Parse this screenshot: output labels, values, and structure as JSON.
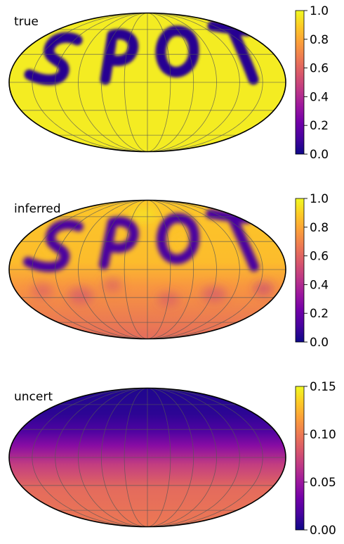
{
  "chart_data": [
    {
      "type": "heatmap",
      "projection": "mollweide",
      "title": "true",
      "colormap": "plasma",
      "colorbar": {
        "range": [
          0.0,
          1.0
        ],
        "ticks": [
          "0.0",
          "0.2",
          "0.4",
          "0.6",
          "0.8",
          "1.0"
        ]
      },
      "background_value": 0.97,
      "features": [
        {
          "letter": "S",
          "value": 0.05
        },
        {
          "letter": "P",
          "value": 0.05
        },
        {
          "letter": "O",
          "value": 0.05
        },
        {
          "letter": "T",
          "value": 0.05
        }
      ],
      "grid": true
    },
    {
      "type": "heatmap",
      "projection": "mollweide",
      "title": "inferred",
      "colormap": "plasma",
      "colorbar": {
        "range": [
          0.0,
          1.0
        ],
        "ticks": [
          "0.0",
          "0.2",
          "0.4",
          "0.6",
          "0.8",
          "1.0"
        ]
      },
      "north_value": 0.88,
      "south_value": 0.62,
      "features": [
        {
          "letter": "S",
          "value": 0.12
        },
        {
          "letter": "P",
          "value": 0.12
        },
        {
          "letter": "O",
          "value": 0.12
        },
        {
          "letter": "T",
          "value": 0.12
        }
      ],
      "grid": true
    },
    {
      "type": "heatmap",
      "projection": "mollweide",
      "title": "uncert",
      "colormap": "plasma",
      "colorbar": {
        "range": [
          0.0,
          0.15
        ],
        "ticks": [
          "0.00",
          "0.05",
          "0.10",
          "0.15"
        ]
      },
      "north_value": 0.005,
      "equator_value": 0.07,
      "south_value": 0.1,
      "grid": true
    }
  ]
}
